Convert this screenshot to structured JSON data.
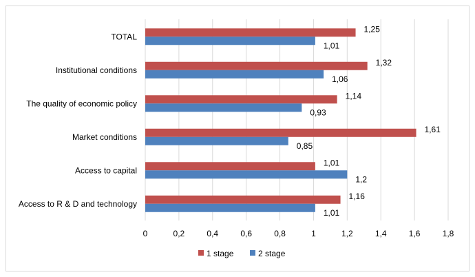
{
  "chart_data": {
    "type": "bar",
    "orientation": "horizontal",
    "categories": [
      "TOTAL",
      "Institutional conditions",
      "The quality of economic policy",
      "Market conditions",
      "Access to capital",
      "Access to R & D and technology"
    ],
    "series": [
      {
        "name": "1 stage",
        "color": "#c0504d",
        "values": [
          1.25,
          1.32,
          1.14,
          1.61,
          1.01,
          1.16
        ],
        "labels": [
          "1,25",
          "1,32",
          "1,14",
          "1,61",
          "1,01",
          "1,16"
        ]
      },
      {
        "name": "2 stage",
        "color": "#4f81bd",
        "values": [
          1.01,
          1.06,
          0.93,
          0.85,
          1.2,
          1.01
        ],
        "labels": [
          "1,01",
          "1,06",
          "0,93",
          "0,85",
          "1,2",
          "1,01"
        ]
      }
    ],
    "xlim": [
      0,
      1.8
    ],
    "xticks": [
      0,
      0.2,
      0.4,
      0.6,
      0.8,
      1,
      1.2,
      1.4,
      1.6,
      1.8
    ],
    "xtick_labels": [
      "0",
      "0,2",
      "0,4",
      "0,6",
      "0,8",
      "1",
      "1,2",
      "1,4",
      "1,6",
      "1,8"
    ],
    "grid": true,
    "legend": "bottom",
    "title": "",
    "xlabel": "",
    "ylabel": ""
  }
}
